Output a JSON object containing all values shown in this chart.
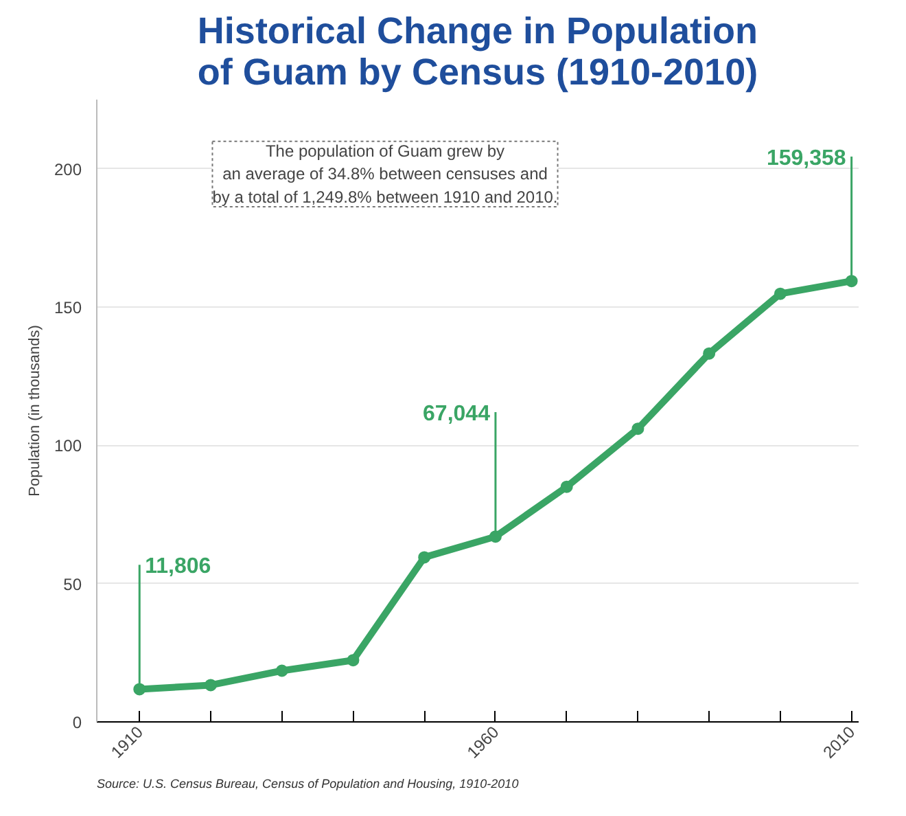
{
  "chart_data": {
    "type": "line",
    "title": "Historical Change in Population\nof Guam by Census (1910-2010)",
    "ylabel": "Population (in thousands)",
    "x": [
      1910,
      1920,
      1930,
      1940,
      1950,
      1960,
      1970,
      1980,
      1990,
      2000,
      2010
    ],
    "series": [
      {
        "color": "#3aa565",
        "values": [
          11.8,
          13.3,
          18.5,
          22.3,
          59.5,
          67.0,
          85.0,
          106.0,
          133.2,
          154.8,
          159.4
        ]
      }
    ],
    "xlim": [
      1904,
      2011
    ],
    "ylim": [
      0,
      225
    ],
    "xticks": [
      1910,
      {
        "value": 1920,
        "label": null
      },
      {
        "value": 1930,
        "label": null
      },
      {
        "value": 1940,
        "label": null
      },
      {
        "value": 1950,
        "label": null
      },
      1960,
      {
        "value": 1970,
        "label": null
      },
      {
        "value": 1980,
        "label": null
      },
      {
        "value": 1990,
        "label": null
      },
      {
        "value": 2000,
        "label": null
      },
      2010
    ],
    "yticks": [
      0,
      50,
      100,
      150,
      200
    ],
    "grid": "y",
    "marker": "circle",
    "line_style": "solid",
    "annotations": [
      {
        "text": "11,806",
        "x": 1910,
        "y": 11.8
      },
      {
        "text": "67,044",
        "x": 1960,
        "y": 67.0
      },
      {
        "text": "159,358",
        "x": 2010,
        "y": 159.4
      },
      "The population of Guam grew by\nan average of 34.8% between censuses and\nby a total of 1,249.8% between 1910 and 2010.",
      "Source: U.S. Census Bureau, Census of Population and Housing, 1910-2010"
    ]
  }
}
